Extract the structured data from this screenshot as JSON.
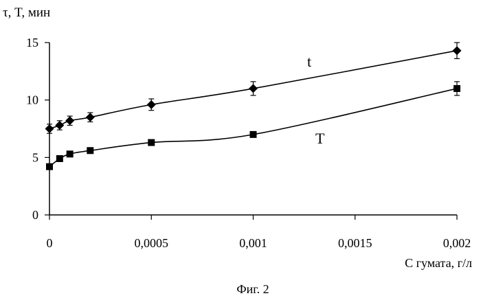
{
  "chart_data": {
    "type": "line",
    "ylabel": "τ, T, мин",
    "xlabel": "C гумата, г/л",
    "caption": "Фиг. 2",
    "xlim": [
      0,
      0.002
    ],
    "ylim": [
      0,
      15
    ],
    "x_ticks": [
      {
        "value": 0,
        "label": "0"
      },
      {
        "value": 0.0005,
        "label": "0,0005"
      },
      {
        "value": 0.001,
        "label": "0,001"
      },
      {
        "value": 0.0015,
        "label": "0,0015"
      },
      {
        "value": 0.002,
        "label": "0,002"
      }
    ],
    "y_ticks": [
      {
        "value": 0,
        "label": "0"
      },
      {
        "value": 5,
        "label": "5"
      },
      {
        "value": 10,
        "label": "10"
      },
      {
        "value": 15,
        "label": "15"
      }
    ],
    "grid": false,
    "series": [
      {
        "name": "t",
        "marker": "diamond",
        "x": [
          0,
          5e-05,
          0.0001,
          0.0002,
          0.0005,
          0.001,
          0.002
        ],
        "y": [
          7.5,
          7.8,
          8.2,
          8.5,
          9.6,
          11.0,
          14.3
        ],
        "err": [
          0.4,
          0.4,
          0.4,
          0.4,
          0.5,
          0.6,
          0.7
        ]
      },
      {
        "name": "T",
        "marker": "square",
        "x": [
          0,
          5e-05,
          0.0001,
          0.0002,
          0.0005,
          0.001,
          0.002
        ],
        "y": [
          4.2,
          4.9,
          5.3,
          5.6,
          6.3,
          7.0,
          11.0
        ],
        "err": [
          0.1,
          0.1,
          0.1,
          0.1,
          0.2,
          0.2,
          0.6
        ]
      }
    ]
  }
}
